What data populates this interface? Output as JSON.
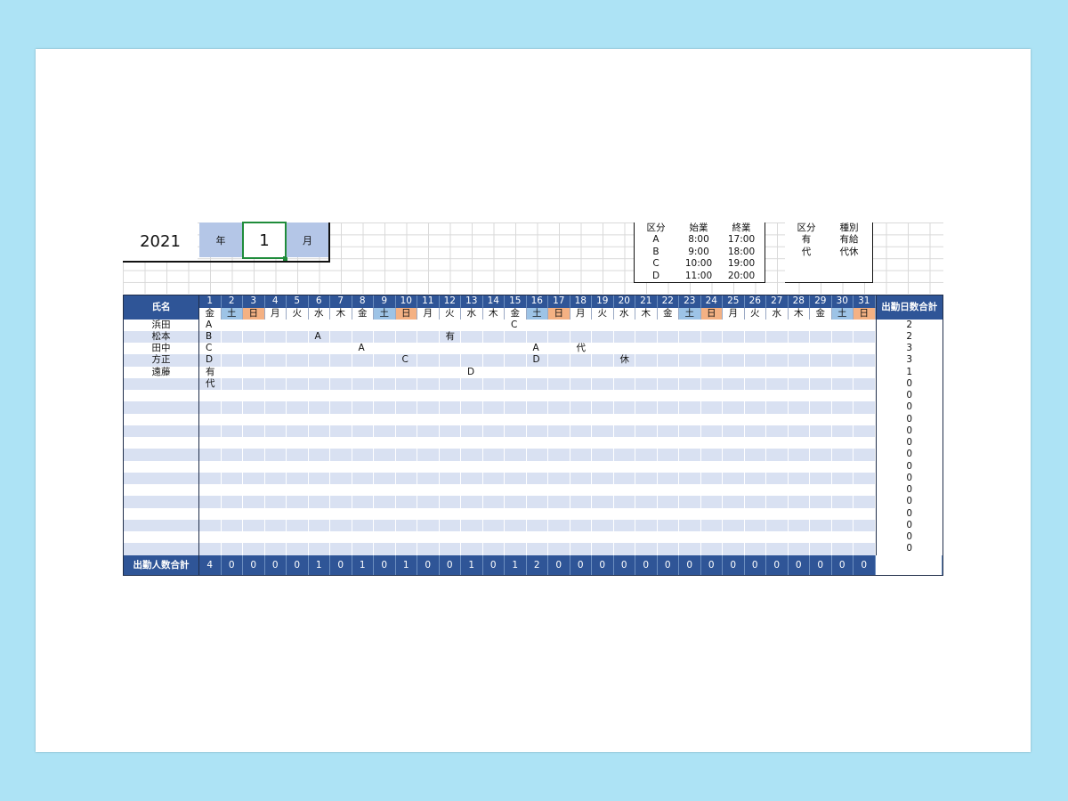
{
  "header": {
    "year": "2021",
    "year_label": "年",
    "month": "1",
    "month_label": "月"
  },
  "shift_legend": {
    "columns": [
      "区分",
      "始業",
      "終業"
    ],
    "rows": [
      [
        "A",
        "8:00",
        "17:00"
      ],
      [
        "B",
        "9:00",
        "18:00"
      ],
      [
        "C",
        "10:00",
        "19:00"
      ],
      [
        "D",
        "11:00",
        "20:00"
      ]
    ]
  },
  "leave_legend": {
    "columns": [
      "区分",
      "種別"
    ],
    "rows": [
      [
        "有",
        "有給"
      ],
      [
        "代",
        "代休"
      ]
    ]
  },
  "table": {
    "name_header": "氏名",
    "total_header": "出勤日数合計",
    "footer_label": "出勤人数合計",
    "days": [
      "1",
      "2",
      "3",
      "4",
      "5",
      "6",
      "7",
      "8",
      "9",
      "10",
      "11",
      "12",
      "13",
      "14",
      "15",
      "16",
      "17",
      "18",
      "19",
      "20",
      "21",
      "22",
      "23",
      "24",
      "25",
      "26",
      "27",
      "28",
      "29",
      "30",
      "31"
    ],
    "weekdays": [
      "金",
      "土",
      "日",
      "月",
      "火",
      "水",
      "木",
      "金",
      "土",
      "日",
      "月",
      "火",
      "水",
      "木",
      "金",
      "土",
      "日",
      "月",
      "火",
      "水",
      "木",
      "金",
      "土",
      "日",
      "月",
      "火",
      "水",
      "木",
      "金",
      "土",
      "日"
    ],
    "rows": [
      {
        "name": "浜田",
        "cells": {
          "1": "A",
          "15": "C"
        },
        "total": "2"
      },
      {
        "name": "松本",
        "cells": {
          "1": "B",
          "6": "A",
          "12": "有"
        },
        "total": "2"
      },
      {
        "name": "田中",
        "cells": {
          "1": "C",
          "8": "A",
          "16": "A",
          "18": "代"
        },
        "total": "3"
      },
      {
        "name": "方正",
        "cells": {
          "1": "D",
          "10": "C",
          "16": "D",
          "20": "休"
        },
        "total": "3"
      },
      {
        "name": "遠藤",
        "cells": {
          "1": "有",
          "13": "D"
        },
        "total": "1"
      },
      {
        "name": "",
        "cells": {
          "1": "代"
        },
        "total": "0"
      },
      {
        "name": "",
        "cells": {},
        "total": "0"
      },
      {
        "name": "",
        "cells": {},
        "total": "0"
      },
      {
        "name": "",
        "cells": {},
        "total": "0"
      },
      {
        "name": "",
        "cells": {},
        "total": "0"
      },
      {
        "name": "",
        "cells": {},
        "total": "0"
      },
      {
        "name": "",
        "cells": {},
        "total": "0"
      },
      {
        "name": "",
        "cells": {},
        "total": "0"
      },
      {
        "name": "",
        "cells": {},
        "total": "0"
      },
      {
        "name": "",
        "cells": {},
        "total": "0"
      },
      {
        "name": "",
        "cells": {},
        "total": "0"
      },
      {
        "name": "",
        "cells": {},
        "total": "0"
      },
      {
        "name": "",
        "cells": {},
        "total": "0"
      },
      {
        "name": "",
        "cells": {},
        "total": "0"
      },
      {
        "name": "",
        "cells": {},
        "total": "0"
      }
    ],
    "daily_totals": [
      "4",
      "0",
      "0",
      "0",
      "0",
      "1",
      "0",
      "1",
      "0",
      "1",
      "0",
      "0",
      "1",
      "0",
      "1",
      "2",
      "0",
      "0",
      "0",
      "0",
      "0",
      "0",
      "0",
      "0",
      "0",
      "0",
      "0",
      "0",
      "0",
      "0",
      "0"
    ]
  },
  "colors": {
    "header_blue": "#2f5597",
    "band_blue": "#d9e1f2",
    "saturday": "#9dc3e6",
    "sunday": "#f4b183",
    "label_box": "#b4c6e7",
    "selection_green": "#1f8c3b"
  }
}
